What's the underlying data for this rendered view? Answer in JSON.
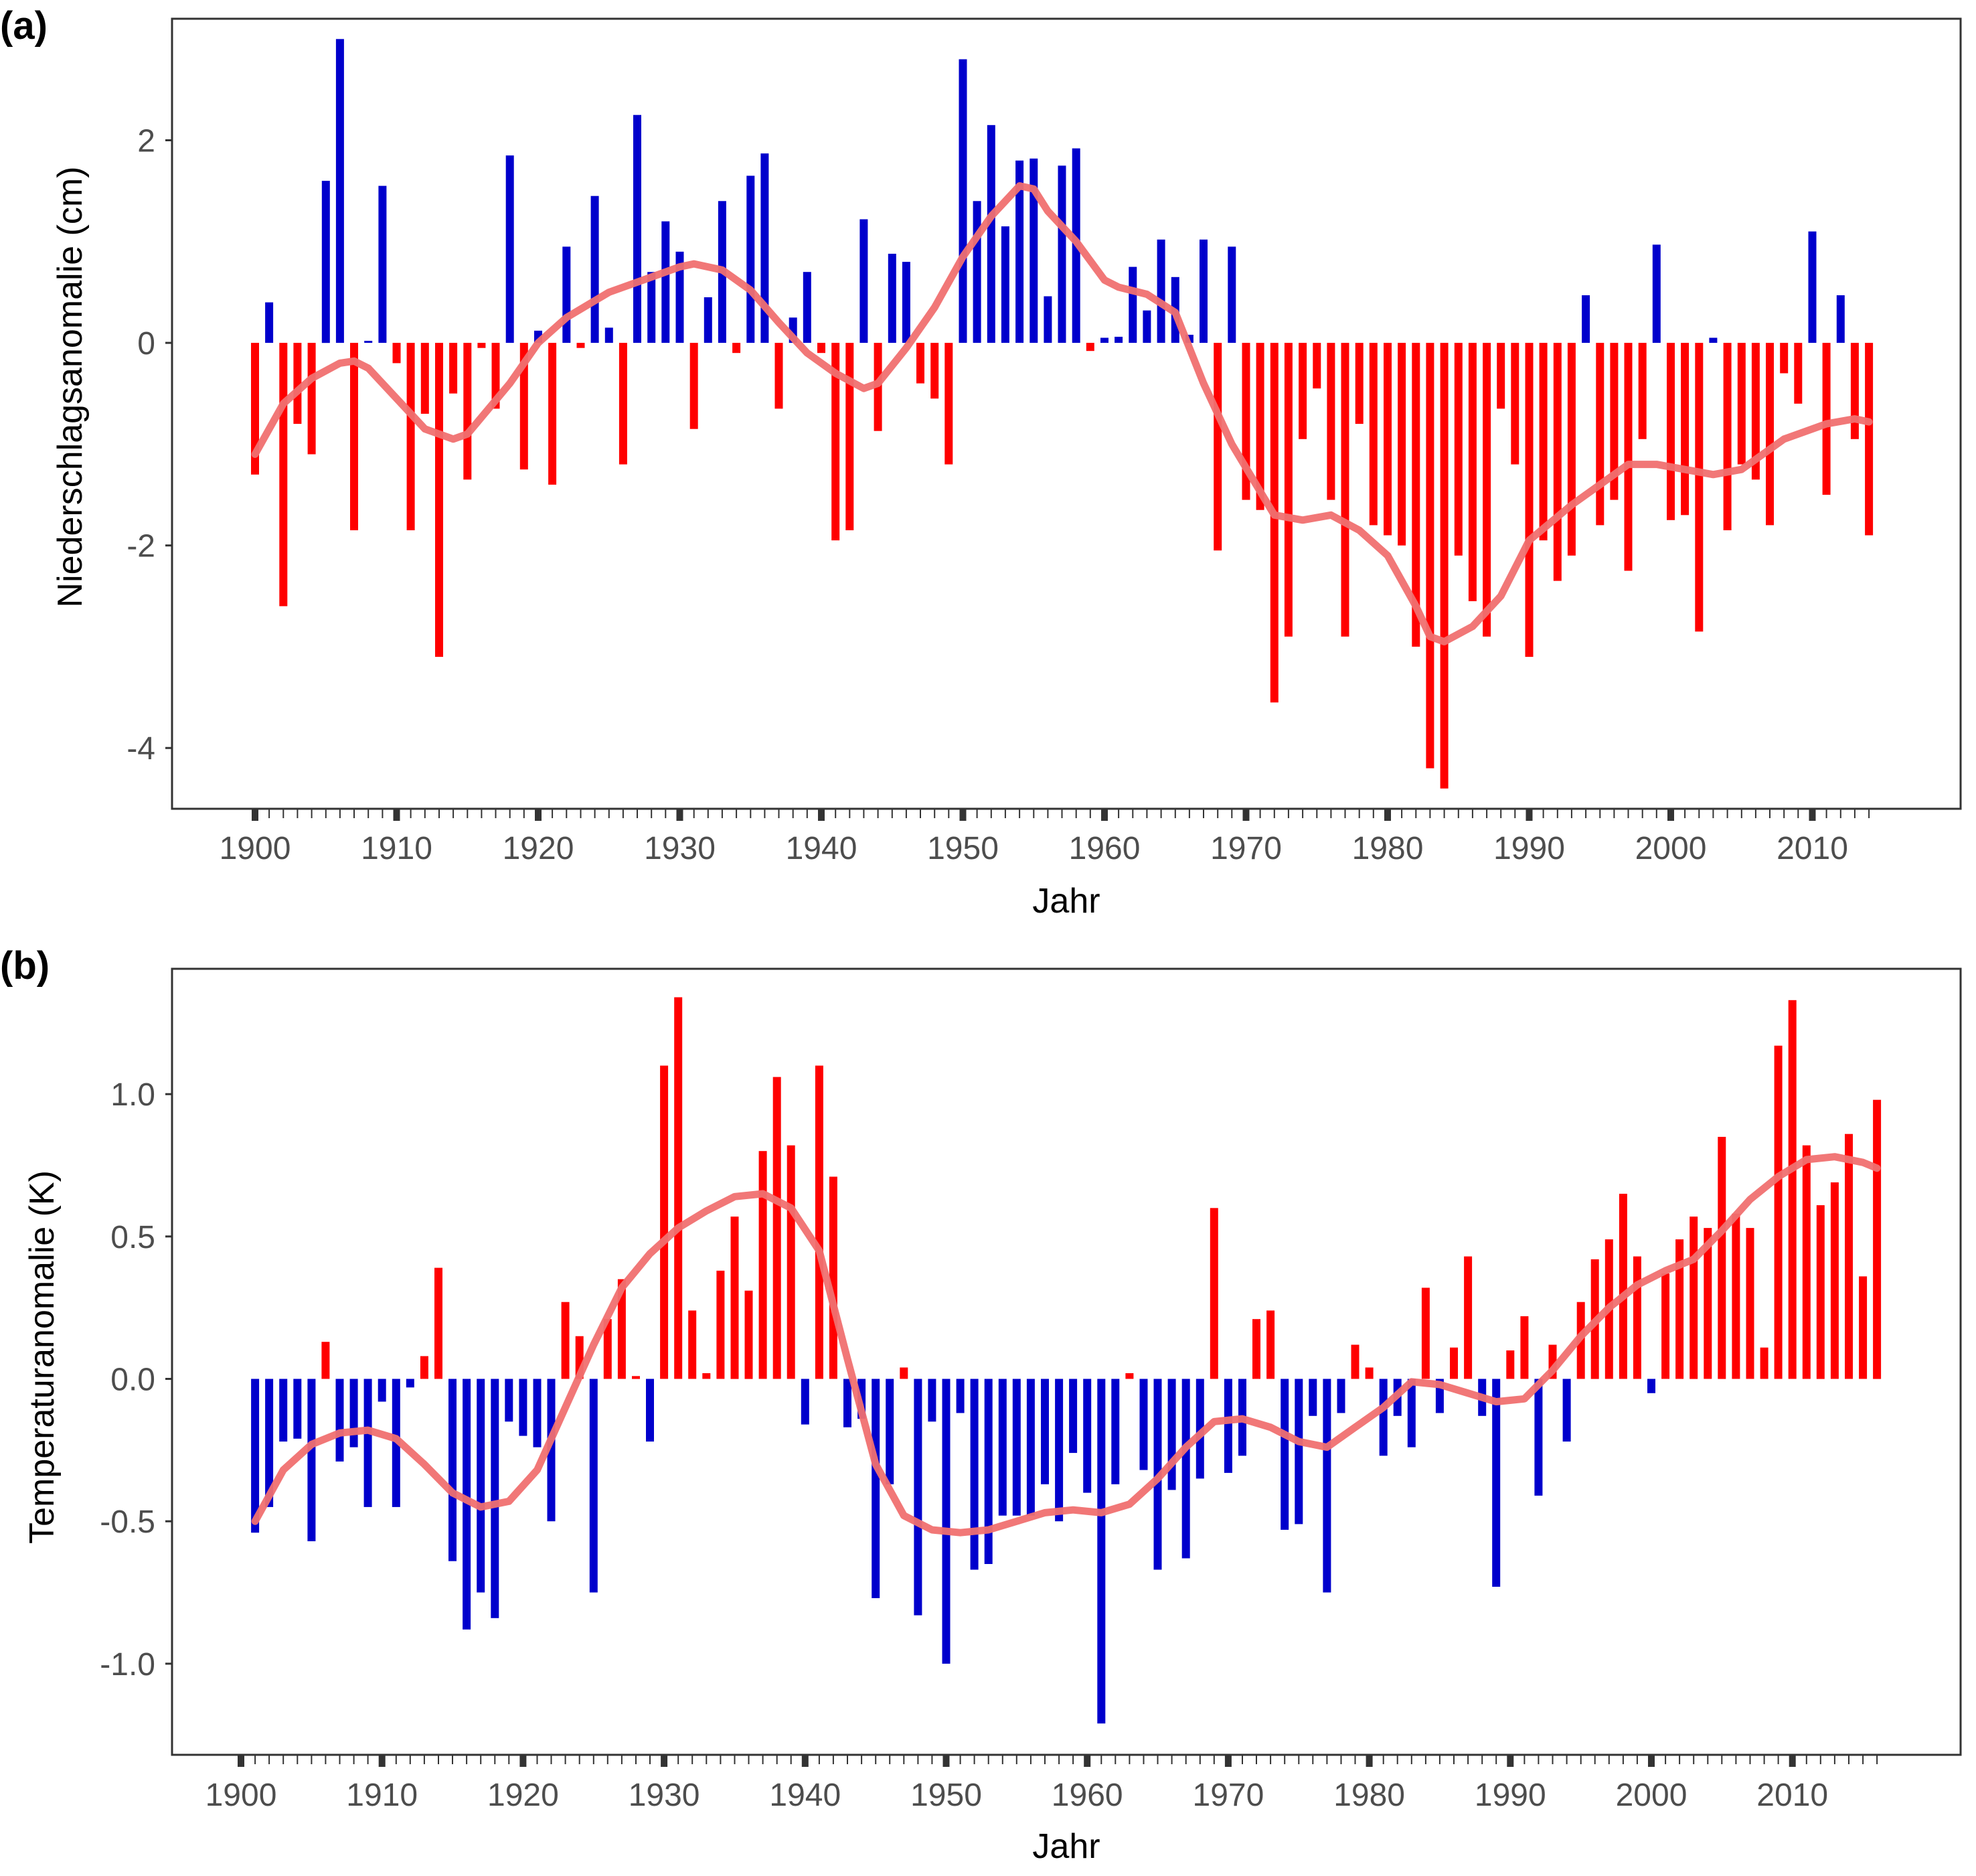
{
  "colors": {
    "positive_precip": "#0000cc",
    "negative_precip": "#ff0000",
    "positive_temp": "#ff0000",
    "negative_temp": "#0000cc",
    "smooth_line": "#f07070",
    "frame": "#333333",
    "tick_text": "#4d4d4d"
  },
  "chart_data": [
    {
      "type": "bar",
      "panel_label": "(a)",
      "xlabel": "Jahr",
      "ylabel": "Niederschlagsanomalie (cm)",
      "xlim": [
        1900,
        2014
      ],
      "ylim": [
        -4.6,
        3.2
      ],
      "xticks": [
        1900,
        1910,
        1920,
        1930,
        1940,
        1950,
        1960,
        1970,
        1980,
        1990,
        2000,
        2010
      ],
      "yticks": [
        -4,
        -2,
        0,
        2
      ],
      "ytick_labels": [
        "-4",
        "-2",
        "0",
        "2"
      ],
      "grid": false,
      "x_start": 1900,
      "values": [
        -1.3,
        0.4,
        -2.6,
        -0.8,
        -1.1,
        1.6,
        3.0,
        -1.85,
        0.02,
        1.55,
        -0.2,
        -1.85,
        -0.7,
        -3.1,
        -0.5,
        -1.35,
        -0.05,
        -0.65,
        1.85,
        -1.25,
        0.12,
        -1.4,
        0.95,
        -0.05,
        1.45,
        0.15,
        -1.2,
        2.25,
        0.7,
        1.2,
        0.9,
        -0.85,
        0.45,
        1.4,
        -0.1,
        1.65,
        1.87,
        -0.65,
        0.25,
        0.7,
        -0.1,
        -1.95,
        -1.85,
        1.22,
        -0.87,
        0.88,
        0.8,
        -0.4,
        -0.55,
        -1.2,
        2.8,
        1.4,
        2.15,
        1.15,
        1.8,
        1.82,
        0.46,
        1.75,
        1.92,
        -0.08,
        0.05,
        0.06,
        0.75,
        0.32,
        1.02,
        0.65,
        0.08,
        1.02,
        -2.05,
        0.95,
        -1.55,
        -1.65,
        -3.55,
        -2.9,
        -0.95,
        -0.45,
        -1.55,
        -2.9,
        -0.8,
        -1.8,
        -1.9,
        -2.0,
        -3.0,
        -4.2,
        -4.4,
        -2.1,
        -2.55,
        -2.9,
        -0.65,
        -1.2,
        -3.1,
        -1.95,
        -2.35,
        -2.1,
        0.47,
        -1.8,
        -1.55,
        -2.25,
        -0.95,
        0.97,
        -1.75,
        -1.7,
        -2.85,
        0.05,
        -1.85,
        -1.2,
        -1.35,
        -1.8,
        -0.3,
        -0.6,
        1.1,
        -1.5,
        0.47,
        -0.95,
        -1.9
      ],
      "smooth_x": [
        1900,
        1902,
        1904,
        1906,
        1907,
        1908,
        1910,
        1912,
        1914,
        1915,
        1918,
        1920,
        1922,
        1925,
        1928,
        1930,
        1931,
        1933,
        1935,
        1937,
        1939,
        1941,
        1943,
        1944,
        1946,
        1948,
        1950,
        1952,
        1954,
        1955,
        1956,
        1958,
        1960,
        1961,
        1963,
        1965,
        1967,
        1969,
        1972,
        1974,
        1976,
        1978,
        1980,
        1982,
        1983,
        1984,
        1986,
        1988,
        1990,
        1993,
        1995,
        1997,
        1999,
        2001,
        2003,
        2005,
        2008,
        2011,
        2013,
        2014
      ],
      "smooth_y": [
        -1.1,
        -0.6,
        -0.35,
        -0.2,
        -0.18,
        -0.25,
        -0.55,
        -0.85,
        -0.95,
        -0.9,
        -0.4,
        0.0,
        0.25,
        0.5,
        0.65,
        0.75,
        0.78,
        0.72,
        0.52,
        0.2,
        -0.1,
        -0.3,
        -0.45,
        -0.4,
        -0.05,
        0.35,
        0.85,
        1.25,
        1.55,
        1.52,
        1.3,
        1.0,
        0.62,
        0.55,
        0.48,
        0.3,
        -0.4,
        -1.0,
        -1.7,
        -1.75,
        -1.7,
        -1.85,
        -2.1,
        -2.6,
        -2.9,
        -2.95,
        -2.8,
        -2.5,
        -1.95,
        -1.6,
        -1.4,
        -1.2,
        -1.2,
        -1.25,
        -1.3,
        -1.25,
        -0.95,
        -0.8,
        -0.75,
        -0.78
      ]
    },
    {
      "type": "bar",
      "panel_label": "(b)",
      "xlabel": "Jahr",
      "ylabel": "Temperaturanomalie (K)",
      "xlim": [
        1900,
        2016
      ],
      "ylim": [
        -1.32,
        1.44
      ],
      "xticks": [
        1900,
        1910,
        1920,
        1930,
        1940,
        1950,
        1960,
        1970,
        1980,
        1990,
        2000,
        2010
      ],
      "yticks": [
        -1.0,
        -0.5,
        0.0,
        0.5,
        1.0
      ],
      "ytick_labels": [
        "-1.0",
        "-0.5",
        "0.0",
        "0.5",
        "1.0"
      ],
      "grid": false,
      "x_start": 1901,
      "values": [
        -0.54,
        -0.45,
        -0.22,
        -0.21,
        -0.57,
        0.13,
        -0.29,
        -0.24,
        -0.45,
        -0.08,
        -0.45,
        -0.03,
        0.08,
        0.39,
        -0.64,
        -0.88,
        -0.75,
        -0.84,
        -0.15,
        -0.2,
        -0.24,
        -0.5,
        0.27,
        0.15,
        -0.75,
        0.21,
        0.35,
        0.01,
        -0.22,
        1.1,
        1.34,
        0.24,
        0.02,
        0.38,
        0.57,
        0.31,
        0.8,
        1.06,
        0.82,
        -0.16,
        1.1,
        0.71,
        -0.17,
        -0.14,
        -0.77,
        -0.37,
        0.04,
        -0.83,
        -0.15,
        -1.0,
        -0.12,
        -0.67,
        -0.65,
        -0.48,
        -0.48,
        -0.48,
        -0.37,
        -0.5,
        -0.26,
        -0.4,
        -1.21,
        -0.37,
        0.02,
        -0.32,
        -0.67,
        -0.39,
        -0.63,
        -0.35,
        0.6,
        -0.33,
        -0.27,
        0.21,
        0.24,
        -0.53,
        -0.51,
        -0.13,
        -0.75,
        -0.12,
        0.12,
        0.04,
        -0.27,
        -0.13,
        -0.24,
        0.32,
        -0.12,
        0.11,
        0.43,
        -0.13,
        -0.73,
        0.1,
        0.22,
        -0.41,
        0.12,
        -0.22,
        0.27,
        0.42,
        0.49,
        0.65,
        0.43,
        -0.05,
        0.37,
        0.49,
        0.57,
        0.53,
        0.85,
        0.58,
        0.53,
        0.11,
        1.17,
        1.33,
        0.82,
        0.61,
        0.69,
        0.86,
        0.36,
        0.98
      ],
      "smooth_x": [
        1901,
        1903,
        1905,
        1907,
        1909,
        1911,
        1913,
        1915,
        1917,
        1919,
        1921,
        1923,
        1925,
        1927,
        1929,
        1931,
        1933,
        1935,
        1937,
        1939,
        1941,
        1943,
        1945,
        1947,
        1949,
        1951,
        1953,
        1955,
        1957,
        1959,
        1961,
        1963,
        1965,
        1967,
        1969,
        1971,
        1973,
        1975,
        1977,
        1979,
        1981,
        1983,
        1985,
        1987,
        1989,
        1991,
        1993,
        1995,
        1997,
        1999,
        2001,
        2003,
        2005,
        2007,
        2009,
        2011,
        2013,
        2015,
        2016
      ],
      "smooth_y": [
        -0.5,
        -0.32,
        -0.23,
        -0.19,
        -0.18,
        -0.21,
        -0.3,
        -0.4,
        -0.45,
        -0.43,
        -0.32,
        -0.1,
        0.12,
        0.32,
        0.44,
        0.53,
        0.59,
        0.64,
        0.65,
        0.6,
        0.45,
        0.07,
        -0.3,
        -0.48,
        -0.53,
        -0.54,
        -0.53,
        -0.5,
        -0.47,
        -0.46,
        -0.47,
        -0.44,
        -0.35,
        -0.24,
        -0.15,
        -0.14,
        -0.17,
        -0.22,
        -0.24,
        -0.17,
        -0.1,
        -0.01,
        -0.02,
        -0.05,
        -0.08,
        -0.07,
        0.03,
        0.15,
        0.25,
        0.33,
        0.38,
        0.42,
        0.52,
        0.63,
        0.71,
        0.77,
        0.78,
        0.76,
        0.74
      ]
    }
  ]
}
